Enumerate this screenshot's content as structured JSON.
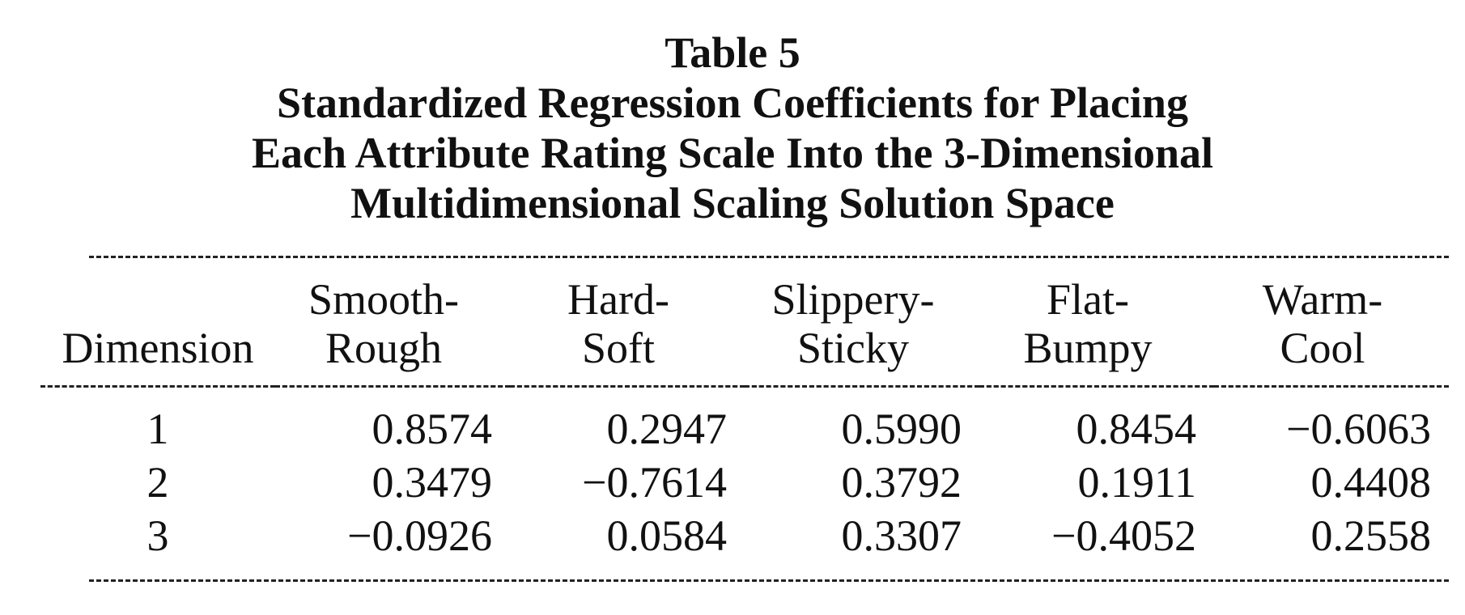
{
  "caption": {
    "label": "Table 5",
    "title_lines": [
      "Standardized Regression Coefficients for Placing",
      "Each Attribute Rating Scale Into the 3-Dimensional",
      "Multidimensional Scaling Solution Space"
    ]
  },
  "table": {
    "row_header": "Dimension",
    "columns": [
      {
        "line1": "Smooth-",
        "line2": "Rough"
      },
      {
        "line1": "Hard-",
        "line2": "Soft"
      },
      {
        "line1": "Slippery-",
        "line2": "Sticky"
      },
      {
        "line1": "Flat-",
        "line2": "Bumpy"
      },
      {
        "line1": "Warm-",
        "line2": "Cool"
      }
    ],
    "rows": [
      {
        "dimension": "1",
        "values": [
          "0.8574",
          "0.2947",
          "0.5990",
          "0.8454",
          "−0.6063"
        ]
      },
      {
        "dimension": "2",
        "values": [
          "0.3479",
          "−0.7614",
          "0.3792",
          "0.1911",
          "0.4408"
        ]
      },
      {
        "dimension": "3",
        "values": [
          "−0.0926",
          "0.0584",
          "0.3307",
          "−0.4052",
          "0.2558"
        ]
      }
    ]
  }
}
